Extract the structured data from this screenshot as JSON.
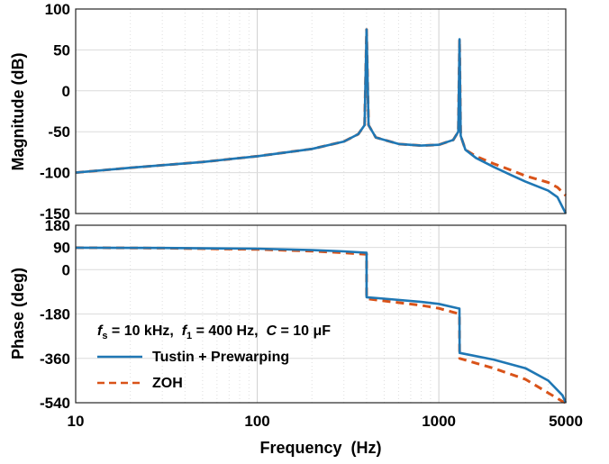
{
  "chart_data": [
    {
      "type": "line",
      "panel": "magnitude",
      "ylabel": "Magnitude (dB)",
      "xlabel": "",
      "xscale": "log",
      "xlim": [
        10,
        5000
      ],
      "ylim": [
        -150,
        100
      ],
      "yticks": [
        100,
        50,
        0,
        -50,
        -100,
        -150
      ],
      "ytick_labels": [
        "100",
        "50",
        "0",
        "-50",
        "-100",
        "-150"
      ],
      "grid": true,
      "series": [
        {
          "name": "Tustin + Prewarping",
          "color": "#1f77b4",
          "style": "solid",
          "x": [
            10,
            20,
            50,
            100,
            200,
            300,
            360,
            390,
            400,
            410,
            450,
            600,
            800,
            1000,
            1200,
            1280,
            1300,
            1320,
            1400,
            1600,
            2000,
            2500,
            3000,
            4000,
            4500,
            5000
          ],
          "y": [
            -100,
            -94,
            -87,
            -80,
            -71,
            -62,
            -53,
            -42,
            75,
            -42,
            -57,
            -65,
            -67,
            -66,
            -60,
            -50,
            63,
            -55,
            -72,
            -82,
            -93,
            -103,
            -111,
            -122,
            -130,
            -150
          ]
        },
        {
          "name": "ZOH",
          "color": "#d95319",
          "style": "dashed",
          "x": [
            10,
            20,
            50,
            100,
            200,
            300,
            360,
            390,
            400,
            410,
            450,
            600,
            800,
            1000,
            1200,
            1280,
            1300,
            1320,
            1400,
            1600,
            2000,
            2500,
            3000,
            4000,
            4500,
            5000
          ],
          "y": [
            -100,
            -94,
            -87,
            -80,
            -71,
            -62,
            -53,
            -42,
            75,
            -42,
            -57,
            -65,
            -67,
            -66,
            -60,
            -50,
            63,
            -55,
            -72,
            -80,
            -89,
            -97,
            -104,
            -112,
            -118,
            -128
          ]
        }
      ]
    },
    {
      "type": "line",
      "panel": "phase",
      "ylabel": "Phase (deg)",
      "xlabel": "Frequency  (Hz)",
      "xscale": "log",
      "xlim": [
        10,
        5000
      ],
      "ylim": [
        -540,
        180
      ],
      "yticks": [
        180,
        90,
        0,
        -180,
        -360,
        -540
      ],
      "ytick_labels": [
        "180",
        "90",
        "0",
        "-180",
        "-360",
        "-540"
      ],
      "xtick_labels": [
        "10",
        "100",
        "1000",
        "5000"
      ],
      "grid": true,
      "series": [
        {
          "name": "Tustin + Prewarping",
          "color": "#1f77b4",
          "style": "solid",
          "x": [
            10,
            30,
            100,
            200,
            300,
            399.9,
            400.1,
            500,
            800,
            1000,
            1299,
            1301,
            2000,
            3000,
            4000,
            4800,
            5000
          ],
          "y": [
            89,
            88,
            85,
            79,
            74,
            68,
            -112,
            -118,
            -131,
            -139,
            -158,
            -338,
            -365,
            -400,
            -450,
            -510,
            -540
          ]
        },
        {
          "name": "ZOH",
          "color": "#d95319",
          "style": "dashed",
          "x": [
            10,
            30,
            100,
            200,
            300,
            399.9,
            400.1,
            500,
            800,
            1000,
            1299,
            1301,
            2000,
            3000,
            4000,
            4800,
            5000
          ],
          "y": [
            89,
            87,
            82,
            75,
            68,
            62,
            -118,
            -127,
            -145,
            -157,
            -180,
            -360,
            -400,
            -445,
            -500,
            -535,
            -540
          ]
        }
      ]
    }
  ],
  "annotation": {
    "fs_sym": "f",
    "fs_sub": "s",
    "fs_val": " = 10 kHz,  ",
    "f1_sym": "f",
    "f1_sub": "1",
    "f1_val": " = 400 Hz,  ",
    "c_sym": "C",
    "c_val": " = 10 μF"
  },
  "legend": {
    "placement": "lower-left",
    "entries": [
      "Tustin + Prewarping",
      "ZOH"
    ]
  }
}
